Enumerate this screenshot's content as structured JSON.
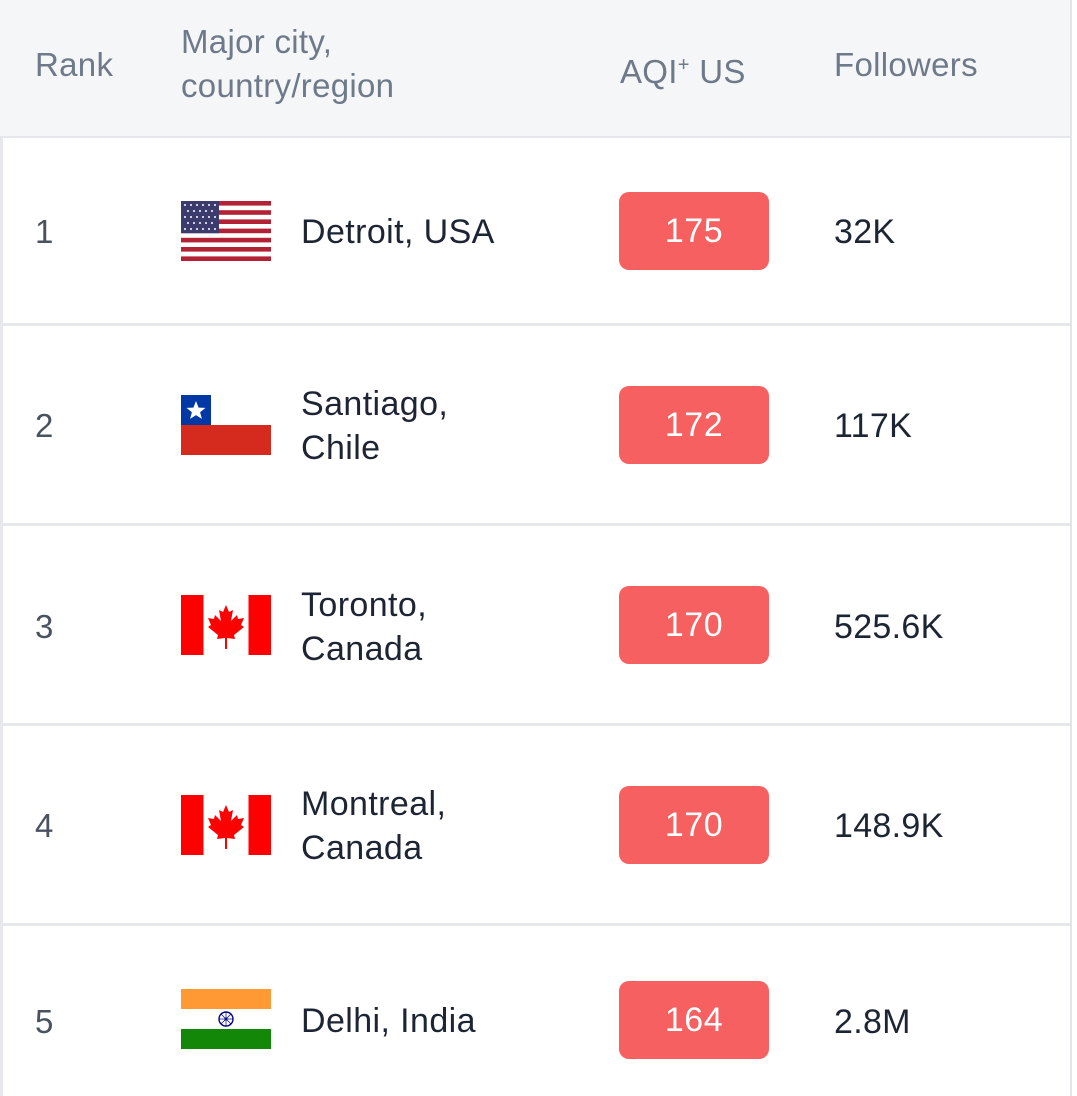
{
  "header": {
    "rank": "Rank",
    "city_line1": "Major city,",
    "city_line2": "country/region",
    "aqi_prefix": "AQI",
    "aqi_sup": "+",
    "aqi_suffix": " US",
    "followers": "Followers"
  },
  "rows": [
    {
      "rank": "1",
      "city_line1": "Detroit, USA",
      "city_line2": "",
      "aqi": "175",
      "followers": "32K",
      "flag": "usa-flag-icon"
    },
    {
      "rank": "2",
      "city_line1": "Santiago,",
      "city_line2": "Chile",
      "aqi": "172",
      "followers": "117K",
      "flag": "chile-flag-icon"
    },
    {
      "rank": "3",
      "city_line1": "Toronto,",
      "city_line2": "Canada",
      "aqi": "170",
      "followers": "525.6K",
      "flag": "canada-flag-icon"
    },
    {
      "rank": "4",
      "city_line1": "Montreal,",
      "city_line2": "Canada",
      "aqi": "170",
      "followers": "148.9K",
      "flag": "canada-flag-icon"
    },
    {
      "rank": "5",
      "city_line1": "Delhi, India",
      "city_line2": "",
      "aqi": "164",
      "followers": "2.8M",
      "flag": "india-flag-icon"
    }
  ],
  "colors": {
    "aqi_unhealthy": "#f66061",
    "header_bg": "#f5f6f8",
    "header_text": "#6e7989"
  }
}
